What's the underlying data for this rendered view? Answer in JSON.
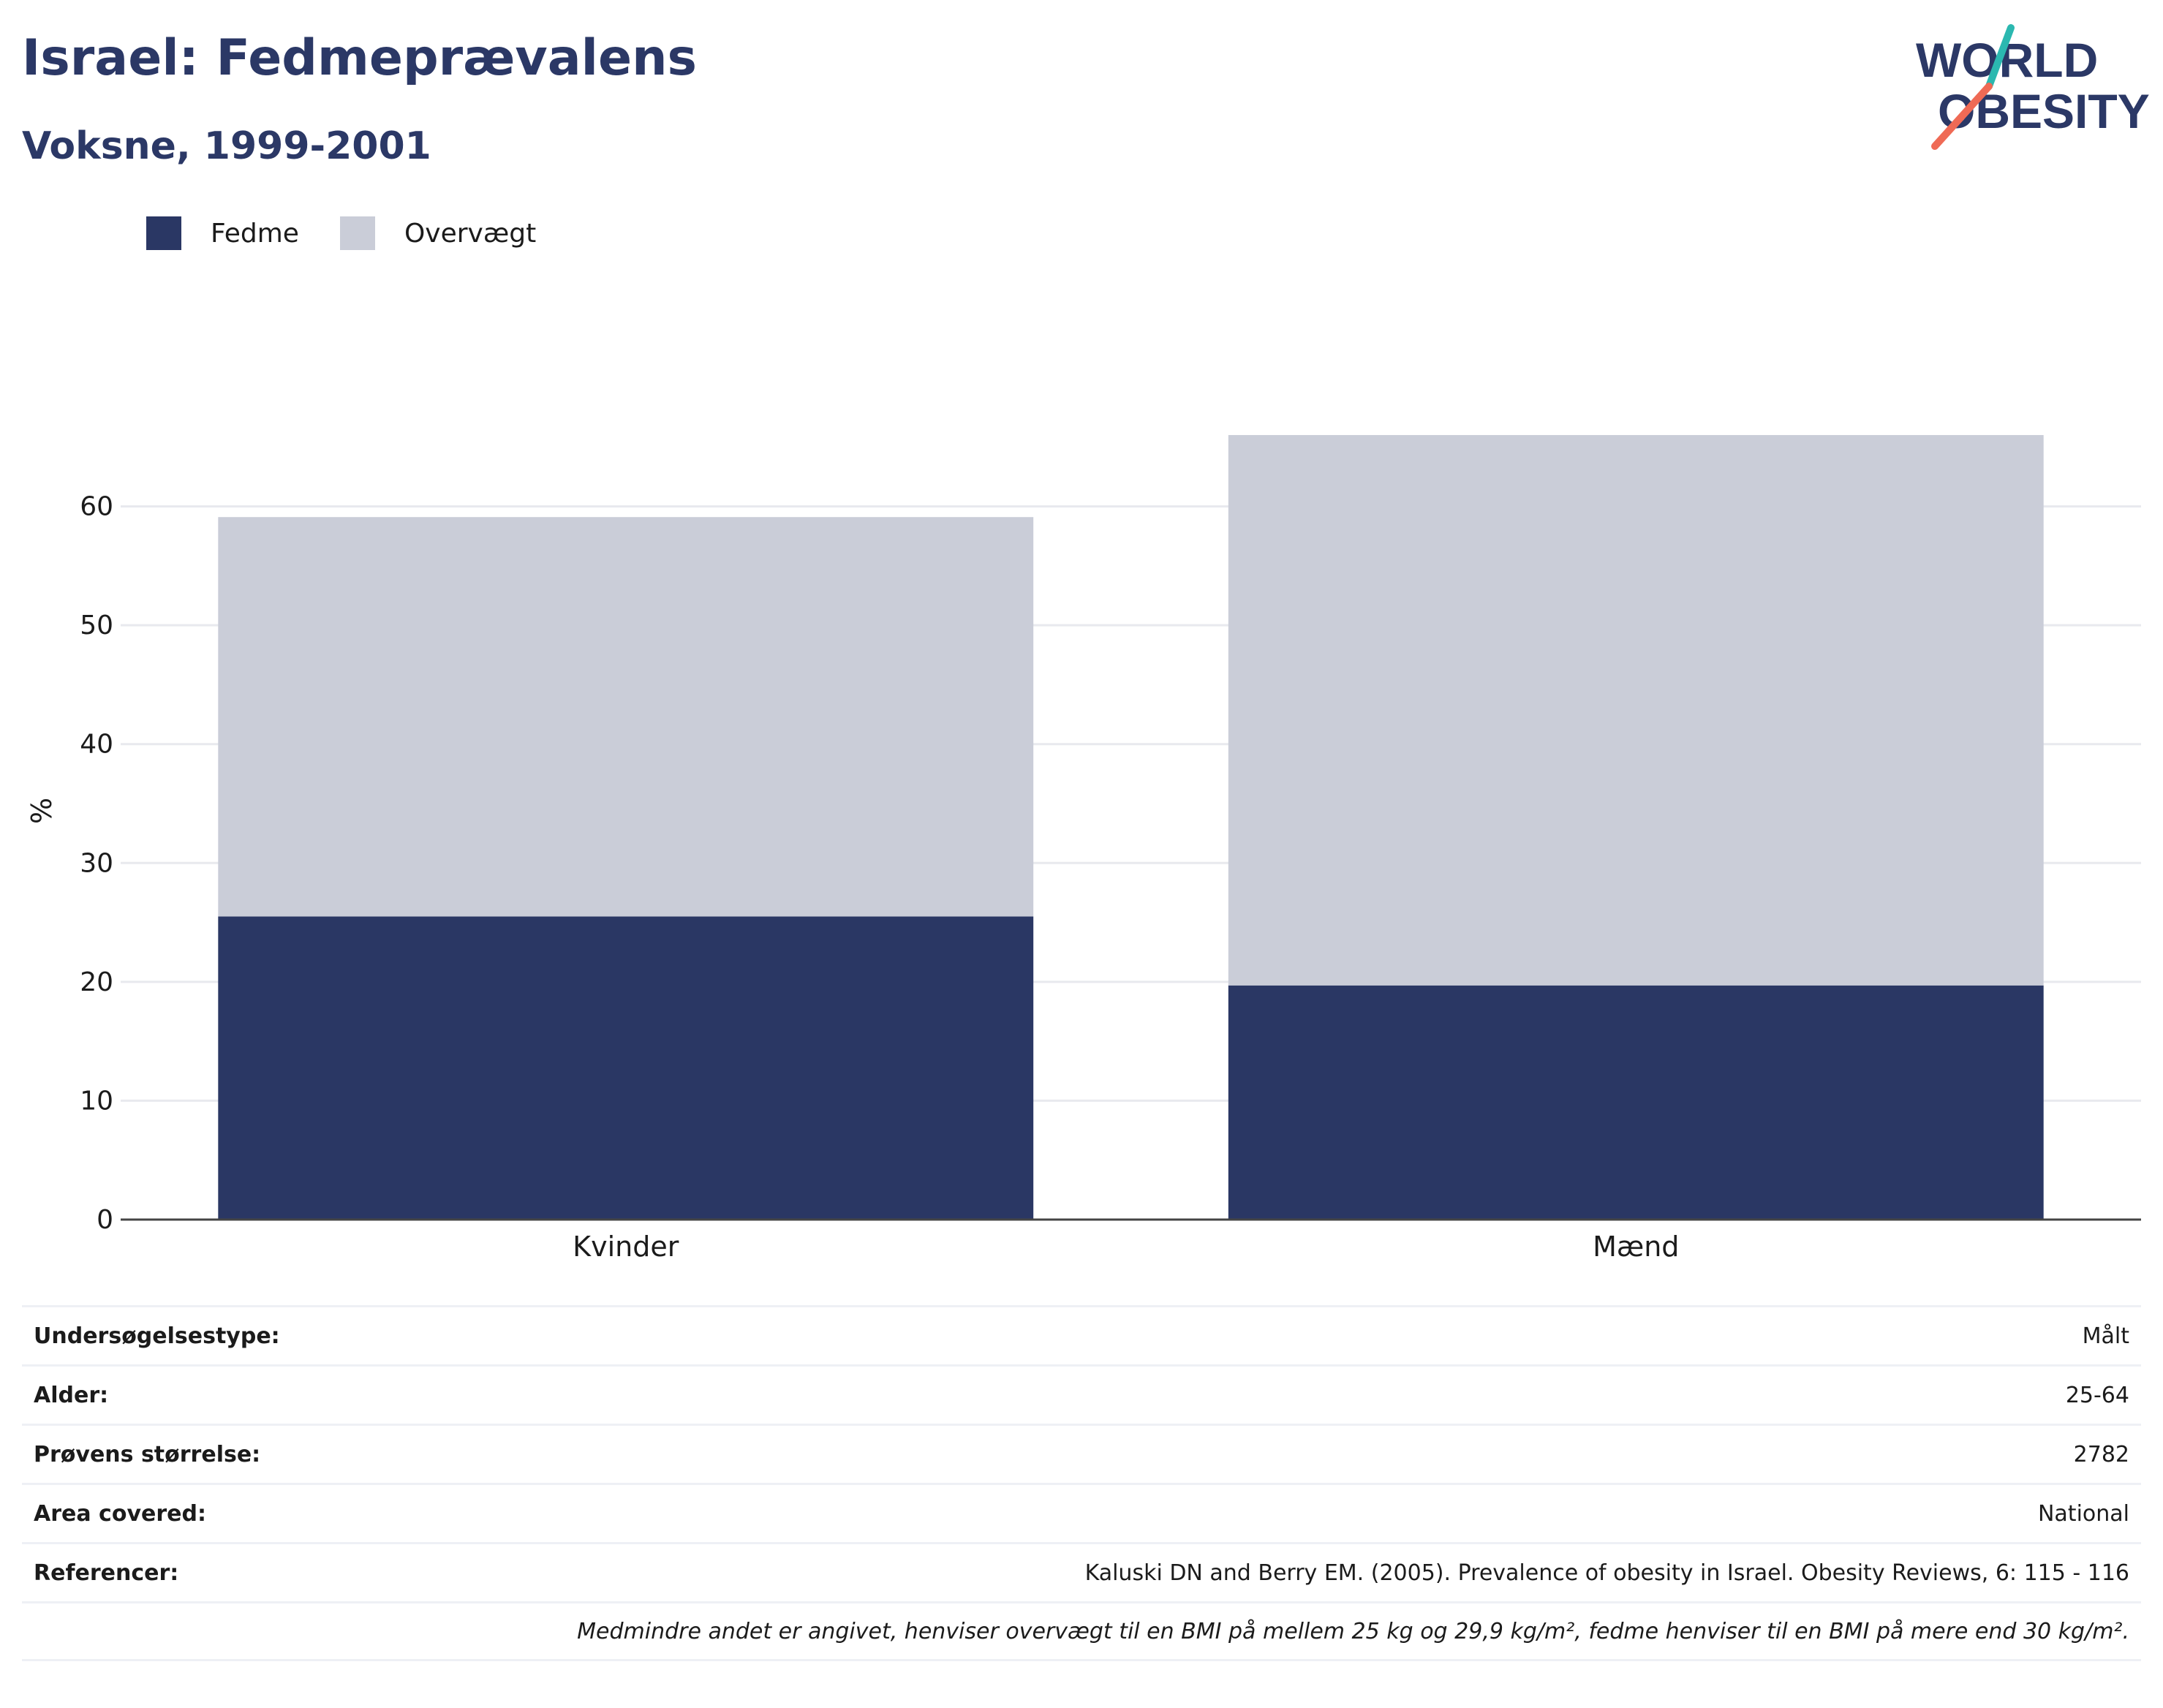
{
  "header": {
    "title": "Israel: Fedmeprævalens",
    "subtitle": "Voksne, 1999-2001",
    "logo_line1": "WORLD",
    "logo_line2": "OBESITY"
  },
  "legend": [
    {
      "label": "Fedme",
      "color": "#2a3764"
    },
    {
      "label": "Overvægt",
      "color": "#cacdd8"
    }
  ],
  "chart_data": {
    "type": "bar",
    "stacked": true,
    "categories": [
      "Kvinder",
      "Mænd"
    ],
    "series": [
      {
        "name": "Fedme",
        "color": "#2a3764",
        "values": [
          25.5,
          19.7
        ]
      },
      {
        "name": "Overvægt",
        "color": "#cacdd8",
        "values": [
          33.6,
          46.3
        ]
      }
    ],
    "ylabel": "%",
    "xlabel": "",
    "ylim": [
      0,
      70
    ],
    "yticks": [
      0,
      10,
      20,
      30,
      40,
      50,
      60
    ],
    "grid": true,
    "legend_position": "top-left"
  },
  "info": {
    "rows": [
      {
        "key": "Undersøgelsestype:",
        "value": "Målt"
      },
      {
        "key": "Alder:",
        "value": "25-64"
      },
      {
        "key": "Prøvens størrelse:",
        "value": "2782"
      },
      {
        "key": "Area covered:",
        "value": "National"
      },
      {
        "key": "Referencer:",
        "value": "Kaluski DN and Berry EM. (2005). Prevalence of obesity in Israel. Obesity Reviews, 6: 115 - 116"
      }
    ],
    "footnote": "Medmindre andet er angivet, henviser overvægt til en BMI på mellem 25 kg og 29,9 kg/m², fedme henviser til en BMI på mere end 30 kg/m²."
  }
}
